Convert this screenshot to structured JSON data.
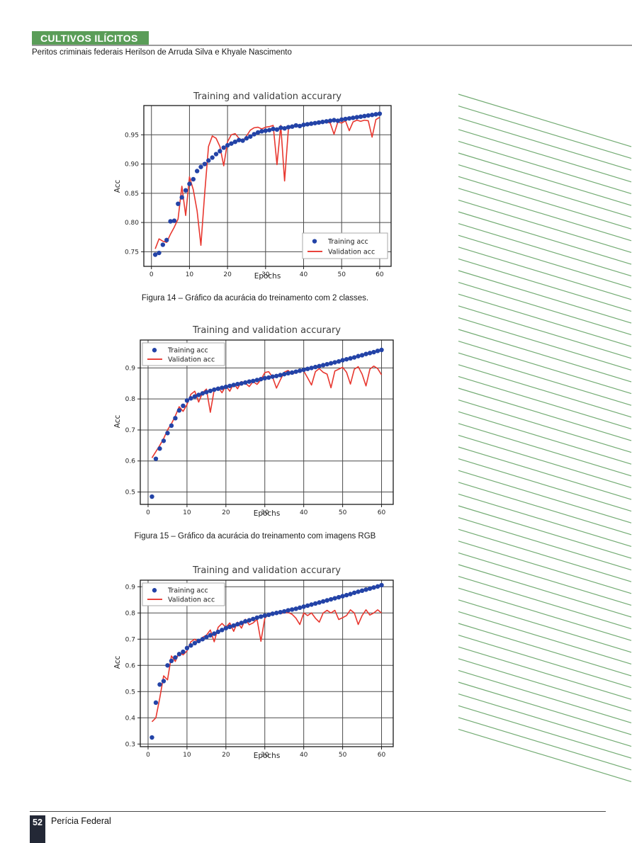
{
  "header": {
    "section_label": "CULTIVOS ILÍCITOS",
    "byline": "Peritos criminais federais Herilson de Arruda Silva e Khyale Nascimento"
  },
  "footer": {
    "page_number": "52",
    "publication": "Perícia Federal"
  },
  "colors": {
    "accent_green": "#5a9d58",
    "stripe_green": "#74ac74",
    "badge_dark": "#232836",
    "training_blue": "#2343a7",
    "validation_red": "#e8372f",
    "grid_gray": "#4a4a4a",
    "plot_border": "#1a1a1a"
  },
  "chart_data": [
    {
      "type": "line",
      "title": "Training and validation accurary",
      "xlabel": "Epochs",
      "ylabel": "Acc",
      "caption": "Figura 14 – Gráfico da acurácia do treinamento com 2 classes.",
      "legend_position": "lower right",
      "grid": true,
      "xlim": [
        -2,
        63
      ],
      "ylim": [
        0.725,
        1.0
      ],
      "xticks": [
        0,
        10,
        20,
        30,
        40,
        50,
        60
      ],
      "yticks": [
        0.75,
        0.8,
        0.85,
        0.9,
        0.95
      ],
      "ytick_labels": [
        "0.75",
        "0.80",
        "0.85",
        "0.90",
        "0.95"
      ],
      "x": [
        1,
        2,
        3,
        4,
        5,
        6,
        7,
        8,
        9,
        10,
        11,
        12,
        13,
        14,
        15,
        16,
        17,
        18,
        19,
        20,
        21,
        22,
        23,
        24,
        25,
        26,
        27,
        28,
        29,
        30,
        31,
        32,
        33,
        34,
        35,
        36,
        37,
        38,
        39,
        40,
        41,
        42,
        43,
        44,
        45,
        46,
        47,
        48,
        49,
        50,
        51,
        52,
        53,
        54,
        55,
        56,
        57,
        58,
        59,
        60
      ],
      "series": [
        {
          "name": "Training acc",
          "style": "scatter",
          "values": [
            0.745,
            0.748,
            0.762,
            0.77,
            0.802,
            0.803,
            0.832,
            0.843,
            0.855,
            0.866,
            0.874,
            0.888,
            0.895,
            0.9,
            0.906,
            0.911,
            0.917,
            0.922,
            0.928,
            0.932,
            0.935,
            0.938,
            0.941,
            0.94,
            0.944,
            0.947,
            0.951,
            0.954,
            0.956,
            0.957,
            0.958,
            0.96,
            0.959,
            0.962,
            0.961,
            0.963,
            0.964,
            0.966,
            0.965,
            0.967,
            0.968,
            0.969,
            0.97,
            0.971,
            0.972,
            0.973,
            0.974,
            0.975,
            0.974,
            0.976,
            0.977,
            0.978,
            0.979,
            0.98,
            0.981,
            0.982,
            0.983,
            0.984,
            0.985,
            0.986
          ]
        },
        {
          "name": "Validation  acc",
          "style": "line",
          "values": [
            0.755,
            0.772,
            0.768,
            0.766,
            0.78,
            0.792,
            0.806,
            0.862,
            0.812,
            0.878,
            0.856,
            0.82,
            0.761,
            0.85,
            0.93,
            0.948,
            0.944,
            0.93,
            0.897,
            0.938,
            0.95,
            0.952,
            0.944,
            0.94,
            0.948,
            0.958,
            0.962,
            0.963,
            0.96,
            0.963,
            0.964,
            0.966,
            0.899,
            0.966,
            0.871,
            0.96,
            0.964,
            0.966,
            0.965,
            0.967,
            0.966,
            0.968,
            0.97,
            0.969,
            0.971,
            0.972,
            0.97,
            0.951,
            0.972,
            0.97,
            0.974,
            0.957,
            0.972,
            0.975,
            0.973,
            0.975,
            0.974,
            0.946,
            0.976,
            0.98
          ]
        }
      ]
    },
    {
      "type": "line",
      "title": "Training and validation accurary",
      "xlabel": "Epochs",
      "ylabel": "Acc",
      "caption": "Figura 15 – Gráfico da acurácia do treinamento com imagens RGB",
      "legend_position": "upper left",
      "grid": true,
      "xlim": [
        -2,
        63
      ],
      "ylim": [
        0.46,
        0.99
      ],
      "xticks": [
        0,
        10,
        20,
        30,
        40,
        50,
        60
      ],
      "yticks": [
        0.5,
        0.6,
        0.7,
        0.8,
        0.9
      ],
      "ytick_labels": [
        "0.5",
        "0.6",
        "0.7",
        "0.8",
        "0.9"
      ],
      "x": [
        1,
        2,
        3,
        4,
        5,
        6,
        7,
        8,
        9,
        10,
        11,
        12,
        13,
        14,
        15,
        16,
        17,
        18,
        19,
        20,
        21,
        22,
        23,
        24,
        25,
        26,
        27,
        28,
        29,
        30,
        31,
        32,
        33,
        34,
        35,
        36,
        37,
        38,
        39,
        40,
        41,
        42,
        43,
        44,
        45,
        46,
        47,
        48,
        49,
        50,
        51,
        52,
        53,
        54,
        55,
        56,
        57,
        58,
        59,
        60
      ],
      "series": [
        {
          "name": "Training acc",
          "style": "scatter",
          "values": [
            0.485,
            0.607,
            0.64,
            0.665,
            0.69,
            0.714,
            0.738,
            0.763,
            0.778,
            0.795,
            0.802,
            0.808,
            0.813,
            0.818,
            0.822,
            0.826,
            0.83,
            0.833,
            0.836,
            0.839,
            0.842,
            0.845,
            0.848,
            0.85,
            0.853,
            0.856,
            0.858,
            0.861,
            0.864,
            0.867,
            0.869,
            0.872,
            0.874,
            0.877,
            0.88,
            0.883,
            0.885,
            0.888,
            0.891,
            0.894,
            0.897,
            0.9,
            0.903,
            0.906,
            0.909,
            0.912,
            0.915,
            0.918,
            0.921,
            0.925,
            0.928,
            0.931,
            0.934,
            0.938,
            0.941,
            0.945,
            0.948,
            0.951,
            0.955,
            0.958
          ]
        },
        {
          "name": "Validation  acc",
          "style": "line",
          "values": [
            0.61,
            0.63,
            0.65,
            0.672,
            0.7,
            0.72,
            0.745,
            0.775,
            0.76,
            0.782,
            0.815,
            0.825,
            0.79,
            0.82,
            0.832,
            0.757,
            0.83,
            0.838,
            0.82,
            0.842,
            0.825,
            0.85,
            0.833,
            0.856,
            0.851,
            0.84,
            0.856,
            0.847,
            0.862,
            0.885,
            0.888,
            0.87,
            0.835,
            0.862,
            0.886,
            0.892,
            0.88,
            0.886,
            0.892,
            0.89,
            0.868,
            0.845,
            0.888,
            0.898,
            0.886,
            0.88,
            0.836,
            0.89,
            0.896,
            0.902,
            0.886,
            0.848,
            0.896,
            0.904,
            0.88,
            0.842,
            0.896,
            0.906,
            0.898,
            0.878
          ]
        }
      ]
    },
    {
      "type": "line",
      "title": "Training and validation accurary",
      "xlabel": "Epochs",
      "ylabel": "Acc",
      "caption": "",
      "legend_position": "upper left",
      "grid": true,
      "xlim": [
        -2,
        63
      ],
      "ylim": [
        0.29,
        0.925
      ],
      "xticks": [
        0,
        10,
        20,
        30,
        40,
        50,
        60
      ],
      "yticks": [
        0.3,
        0.4,
        0.5,
        0.6,
        0.7,
        0.8,
        0.9
      ],
      "ytick_labels": [
        "0.3",
        "0.4",
        "0.5",
        "0.6",
        "0.7",
        "0.8",
        "0.9"
      ],
      "x": [
        1,
        2,
        3,
        4,
        5,
        6,
        7,
        8,
        9,
        10,
        11,
        12,
        13,
        14,
        15,
        16,
        17,
        18,
        19,
        20,
        21,
        22,
        23,
        24,
        25,
        26,
        27,
        28,
        29,
        30,
        31,
        32,
        33,
        34,
        35,
        36,
        37,
        38,
        39,
        40,
        41,
        42,
        43,
        44,
        45,
        46,
        47,
        48,
        49,
        50,
        51,
        52,
        53,
        54,
        55,
        56,
        57,
        58,
        59,
        60
      ],
      "series": [
        {
          "name": "Training acc",
          "style": "scatter",
          "values": [
            0.325,
            0.458,
            0.527,
            0.54,
            0.6,
            0.617,
            0.63,
            0.643,
            0.652,
            0.666,
            0.676,
            0.685,
            0.693,
            0.7,
            0.708,
            0.715,
            0.721,
            0.728,
            0.735,
            0.742,
            0.747,
            0.752,
            0.757,
            0.762,
            0.768,
            0.772,
            0.777,
            0.782,
            0.786,
            0.79,
            0.793,
            0.797,
            0.8,
            0.803,
            0.806,
            0.81,
            0.813,
            0.816,
            0.82,
            0.824,
            0.828,
            0.832,
            0.836,
            0.84,
            0.844,
            0.848,
            0.852,
            0.856,
            0.86,
            0.864,
            0.868,
            0.872,
            0.877,
            0.881,
            0.885,
            0.889,
            0.893,
            0.897,
            0.901,
            0.906
          ]
        },
        {
          "name": "Validation  acc",
          "style": "line",
          "values": [
            0.385,
            0.4,
            0.475,
            0.56,
            0.545,
            0.636,
            0.615,
            0.65,
            0.64,
            0.655,
            0.69,
            0.7,
            0.687,
            0.707,
            0.715,
            0.735,
            0.69,
            0.745,
            0.76,
            0.745,
            0.762,
            0.73,
            0.765,
            0.742,
            0.776,
            0.755,
            0.762,
            0.776,
            0.692,
            0.78,
            0.795,
            0.8,
            0.8,
            0.798,
            0.8,
            0.802,
            0.795,
            0.78,
            0.756,
            0.8,
            0.79,
            0.8,
            0.78,
            0.765,
            0.8,
            0.81,
            0.8,
            0.81,
            0.775,
            0.782,
            0.79,
            0.812,
            0.8,
            0.756,
            0.79,
            0.812,
            0.792,
            0.8,
            0.812,
            0.8
          ]
        }
      ]
    }
  ]
}
